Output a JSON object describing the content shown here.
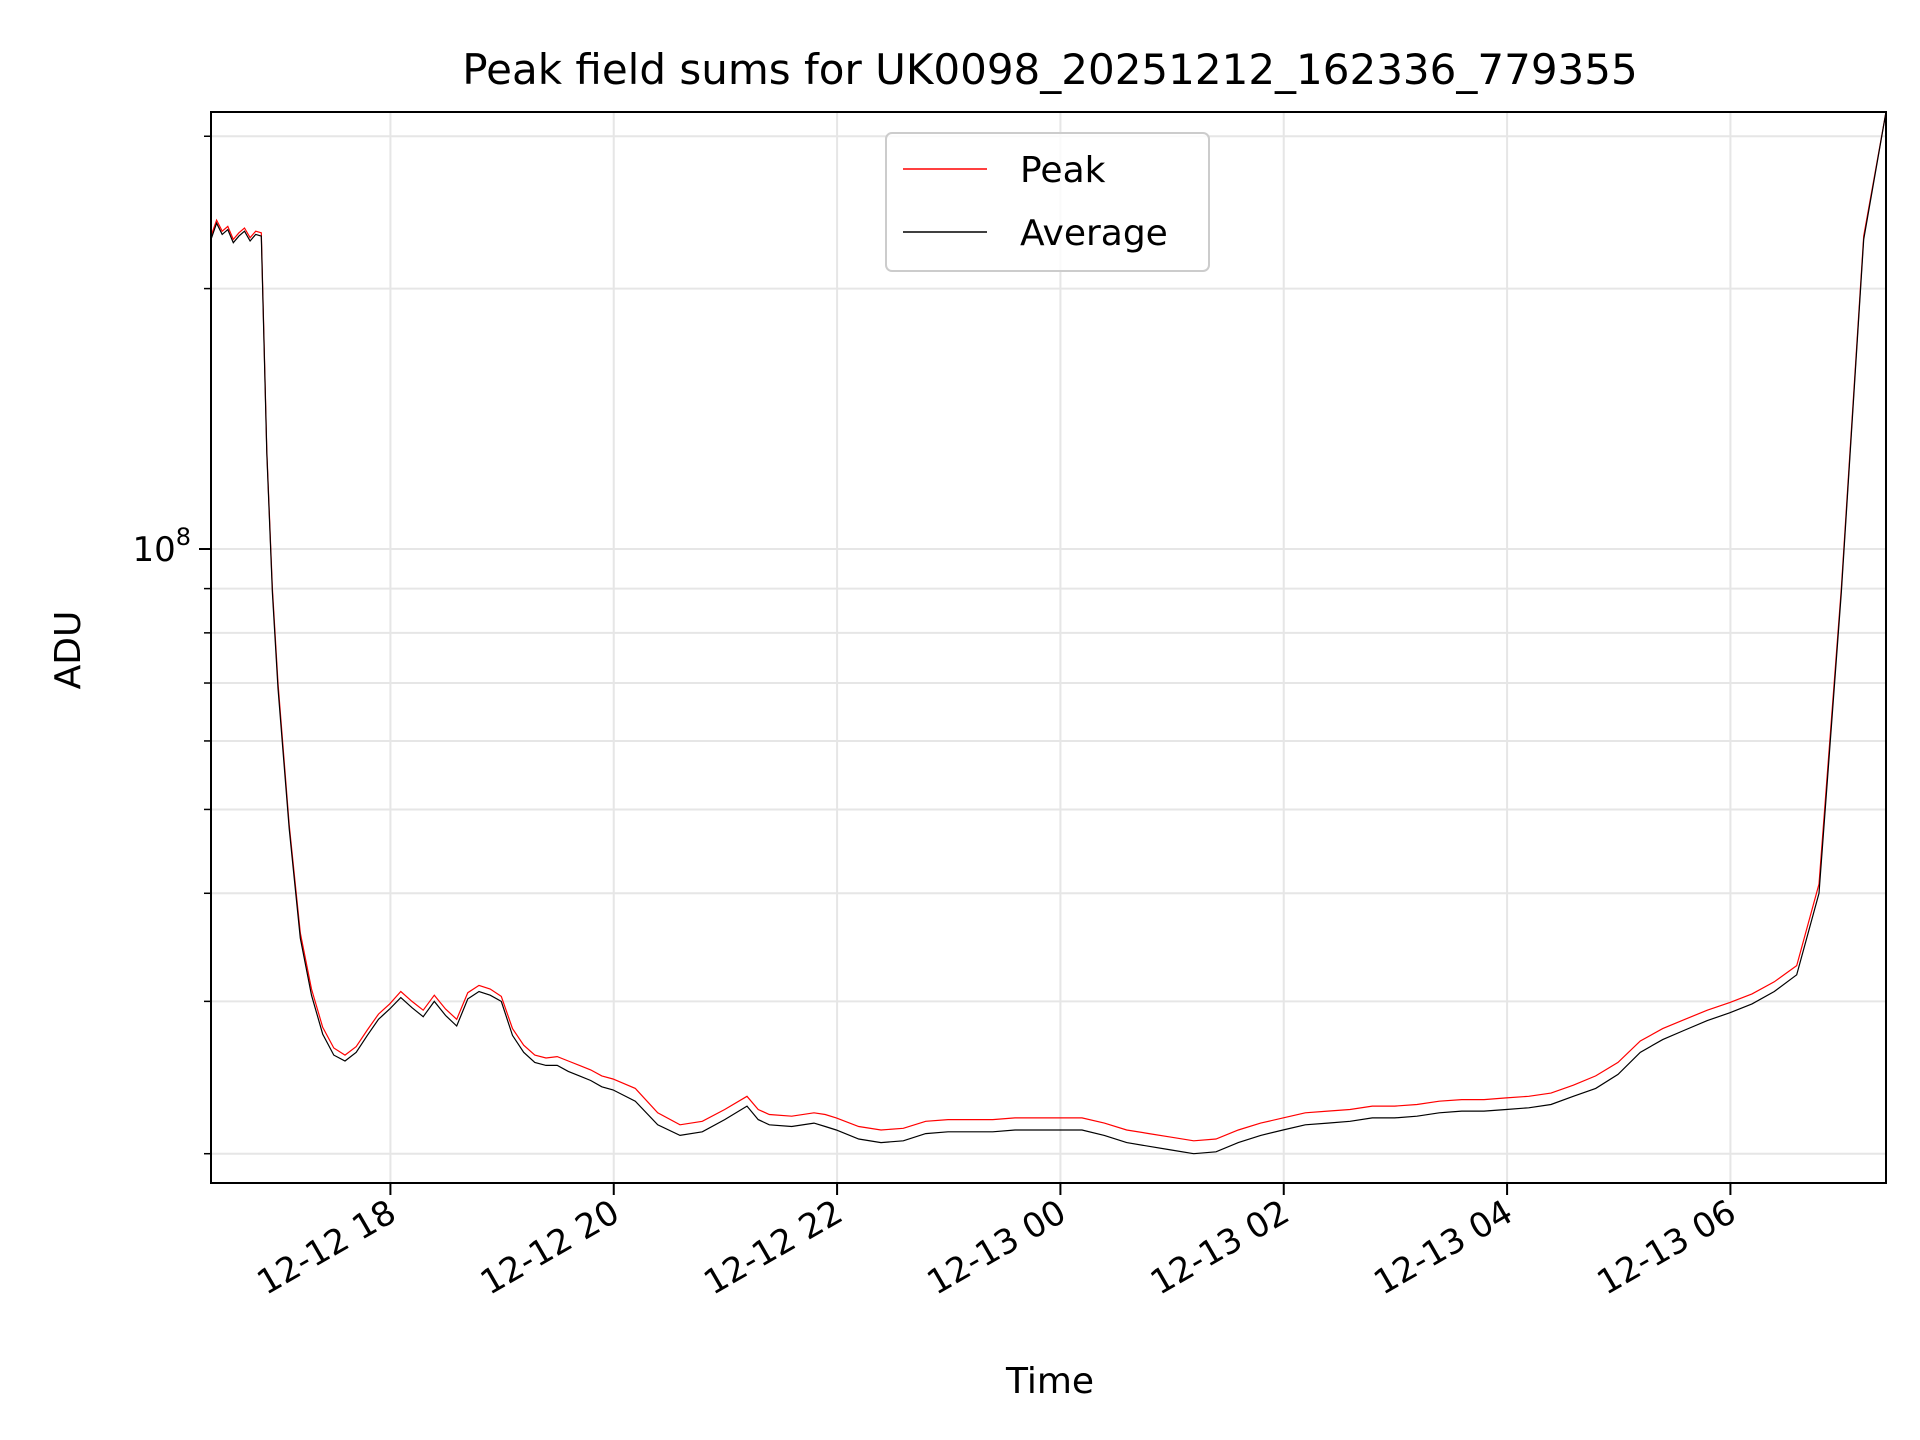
{
  "chart_data": {
    "type": "line",
    "title": "Peak field sums for UK0098_20251212_162336_779355",
    "xlabel": "Time",
    "ylabel": "ADU",
    "yscale": "log",
    "grid": true,
    "legend_position": "top-center",
    "x_unit": "hours since 2025-12-12 16:23:36",
    "xlim": [
      0,
      15.0
    ],
    "ylim": [
      18500000,
      320000000
    ],
    "x_tick_values": [
      1.6067,
      3.6067,
      5.6067,
      7.6067,
      9.6067,
      11.6067,
      13.6067
    ],
    "x_tick_labels": [
      "12-12 18",
      "12-12 20",
      "12-12 22",
      "12-13 00",
      "12-13 02",
      "12-13 04",
      "12-13 06"
    ],
    "y_major_ticks": [
      {
        "value": 100000000,
        "base": "10",
        "exponent": "8"
      }
    ],
    "y_minor_ticks": [
      20000000,
      30000000,
      40000000,
      50000000,
      60000000,
      70000000,
      80000000,
      90000000,
      200000000,
      300000000
    ],
    "series": [
      {
        "name": "Peak",
        "color": "#ff0000",
        "x": [
          0,
          0.05,
          0.1,
          0.15,
          0.2,
          0.25,
          0.3,
          0.35,
          0.4,
          0.45,
          0.5,
          0.55,
          0.6,
          0.7,
          0.8,
          0.9,
          1.0,
          1.1,
          1.2,
          1.3,
          1.4,
          1.5,
          1.6,
          1.7,
          1.8,
          1.9,
          2.0,
          2.1,
          2.2,
          2.3,
          2.4,
          2.5,
          2.6,
          2.7,
          2.8,
          2.9,
          3.0,
          3.1,
          3.2,
          3.3,
          3.4,
          3.5,
          3.6,
          3.8,
          4.0,
          4.2,
          4.4,
          4.6,
          4.8,
          4.9,
          5.0,
          5.2,
          5.4,
          5.5,
          5.6,
          5.8,
          6.0,
          6.2,
          6.4,
          6.6,
          6.8,
          7.0,
          7.2,
          7.4,
          7.6,
          7.8,
          8.0,
          8.2,
          8.4,
          8.6,
          8.8,
          9.0,
          9.2,
          9.4,
          9.6,
          9.8,
          10.0,
          10.2,
          10.4,
          10.6,
          10.8,
          11.0,
          11.2,
          11.4,
          11.6,
          11.8,
          12.0,
          12.2,
          12.4,
          12.6,
          12.8,
          13.0,
          13.2,
          13.4,
          13.6,
          13.8,
          14.0,
          14.2,
          14.4,
          14.6,
          14.8,
          15.0
        ],
        "values": [
          230000000,
          240000000,
          233000000,
          236000000,
          228000000,
          232000000,
          235000000,
          229000000,
          233000000,
          232000000,
          130000000,
          90000000,
          70000000,
          48000000,
          36000000,
          31000000,
          28000000,
          26500000,
          26000000,
          26600000,
          27800000,
          29000000,
          29800000,
          30800000,
          30000000,
          29300000,
          30500000,
          29400000,
          28600000,
          30700000,
          31300000,
          31000000,
          30400000,
          27900000,
          26700000,
          26000000,
          25800000,
          25900000,
          25600000,
          25300000,
          25000000,
          24600000,
          24400000,
          23800000,
          22300000,
          21600000,
          21800000,
          22500000,
          23300000,
          22500000,
          22200000,
          22100000,
          22300000,
          22200000,
          22000000,
          21500000,
          21300000,
          21400000,
          21800000,
          21900000,
          21900000,
          21900000,
          22000000,
          22000000,
          22000000,
          22000000,
          21700000,
          21300000,
          21100000,
          20900000,
          20700000,
          20800000,
          21300000,
          21700000,
          22000000,
          22300000,
          22400000,
          22500000,
          22700000,
          22700000,
          22800000,
          23000000,
          23100000,
          23100000,
          23200000,
          23300000,
          23500000,
          24000000,
          24600000,
          25500000,
          27000000,
          27900000,
          28600000,
          29300000,
          29900000,
          30600000,
          31600000,
          33000000,
          41000000,
          90000000,
          230000000,
          330000000
        ]
      },
      {
        "name": "Average",
        "color": "#000000",
        "x": [
          0,
          0.05,
          0.1,
          0.15,
          0.2,
          0.25,
          0.3,
          0.35,
          0.4,
          0.45,
          0.5,
          0.55,
          0.6,
          0.7,
          0.8,
          0.9,
          1.0,
          1.1,
          1.2,
          1.3,
          1.4,
          1.5,
          1.6,
          1.7,
          1.8,
          1.9,
          2.0,
          2.1,
          2.2,
          2.3,
          2.4,
          2.5,
          2.6,
          2.7,
          2.8,
          2.9,
          3.0,
          3.1,
          3.2,
          3.3,
          3.4,
          3.5,
          3.6,
          3.8,
          4.0,
          4.2,
          4.4,
          4.6,
          4.8,
          4.9,
          5.0,
          5.2,
          5.4,
          5.5,
          5.6,
          5.8,
          6.0,
          6.2,
          6.4,
          6.6,
          6.8,
          7.0,
          7.2,
          7.4,
          7.6,
          7.8,
          8.0,
          8.2,
          8.4,
          8.6,
          8.8,
          9.0,
          9.2,
          9.4,
          9.6,
          9.8,
          10.0,
          10.2,
          10.4,
          10.6,
          10.8,
          11.0,
          11.2,
          11.4,
          11.6,
          11.8,
          12.0,
          12.2,
          12.4,
          12.6,
          12.8,
          13.0,
          13.2,
          13.4,
          13.6,
          13.8,
          14.0,
          14.2,
          14.4,
          14.6,
          14.8,
          15.0
        ],
        "values": [
          228000000,
          238000000,
          231000000,
          234000000,
          226000000,
          230000000,
          233000000,
          227000000,
          231000000,
          230000000,
          129000000,
          89000000,
          69000000,
          47500000,
          35500000,
          30500000,
          27500000,
          26000000,
          25600000,
          26200000,
          27400000,
          28600000,
          29400000,
          30300000,
          29500000,
          28800000,
          30000000,
          28900000,
          28100000,
          30200000,
          30800000,
          30500000,
          30000000,
          27400000,
          26200000,
          25500000,
          25300000,
          25300000,
          24900000,
          24600000,
          24300000,
          23900000,
          23700000,
          23000000,
          21600000,
          21000000,
          21200000,
          21900000,
          22700000,
          21900000,
          21600000,
          21500000,
          21700000,
          21500000,
          21300000,
          20800000,
          20600000,
          20700000,
          21100000,
          21200000,
          21200000,
          21200000,
          21300000,
          21300000,
          21300000,
          21300000,
          21000000,
          20600000,
          20400000,
          20200000,
          20000000,
          20100000,
          20600000,
          21000000,
          21300000,
          21600000,
          21700000,
          21800000,
          22000000,
          22000000,
          22100000,
          22300000,
          22400000,
          22400000,
          22500000,
          22600000,
          22800000,
          23300000,
          23800000,
          24700000,
          26200000,
          27100000,
          27800000,
          28500000,
          29100000,
          29800000,
          30800000,
          32200000,
          40000000,
          89000000,
          228000000,
          328000000
        ]
      }
    ]
  }
}
